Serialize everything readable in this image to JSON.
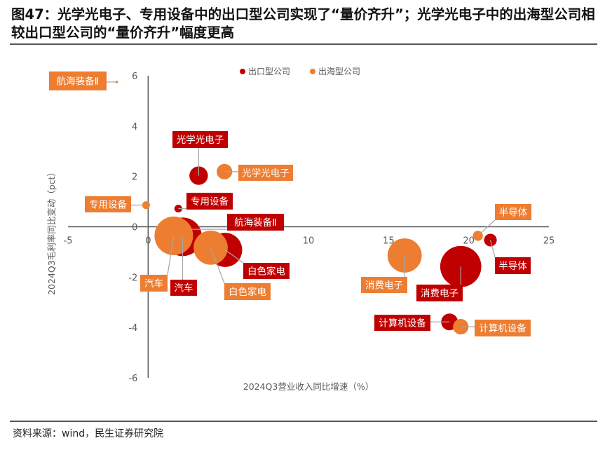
{
  "title": "图47：光学光电子、专用设备中的出口型公司实现了“量价齐升”；光学光电子中的出海型公司相较出口型公司的“量价齐升”幅度更高",
  "footer": "资料来源：wind，民生证券研究院",
  "chart_data": {
    "type": "bubble",
    "xlabel": "2024Q3营业收入同比增速（%）",
    "ylabel": "2024Q3毛利率同比变动（pct）",
    "xlim": [
      -5,
      25
    ],
    "ylim": [
      -6,
      6
    ],
    "xticks": [
      "-5",
      "0",
      "5",
      "10",
      "15",
      "20",
      "25"
    ],
    "yticks": [
      "6",
      "4",
      "2",
      "0",
      "-2",
      "-4",
      "-6"
    ],
    "grid": false,
    "legend_position": "top",
    "colors": {
      "出口型公司": "#C00000",
      "出海型公司": "#ED7D31"
    },
    "series": [
      {
        "name": "出口型公司",
        "color": "#C00000",
        "points": [
          {
            "label": "光学光电子",
            "x": 3.15,
            "y": 2.03,
            "size": 17
          },
          {
            "label": "专用设备",
            "x": 1.88,
            "y": 0.72,
            "size": 3
          },
          {
            "label": "航海装备Ⅱ",
            "x": 2.7,
            "y": -0.1,
            "size": 1
          },
          {
            "label": "汽车",
            "x": 2.15,
            "y": -0.4,
            "size": 74
          },
          {
            "label": "白色家电",
            "x": 4.8,
            "y": -0.92,
            "size": 58
          },
          {
            "label": "消费电子",
            "x": 19.5,
            "y": -1.58,
            "size": 84
          },
          {
            "label": "半导体",
            "x": 21.35,
            "y": -0.53,
            "size": 8
          },
          {
            "label": "计算机设备",
            "x": 18.8,
            "y": -3.78,
            "size": 14
          }
        ]
      },
      {
        "name": "出海型公司",
        "color": "#ED7D31",
        "points": [
          {
            "label": "航海装备Ⅱ",
            "x": -1.96,
            "y": 5.75,
            "size": 0.3
          },
          {
            "label": "光学光电子",
            "x": 4.76,
            "y": 2.19,
            "size": 12
          },
          {
            "label": "专用设备",
            "x": -0.13,
            "y": 0.86,
            "size": 3
          },
          {
            "label": "汽车",
            "x": 1.6,
            "y": -0.36,
            "size": 74
          },
          {
            "label": "白色家电",
            "x": 3.9,
            "y": -0.83,
            "size": 58
          },
          {
            "label": "消费电子",
            "x": 16.0,
            "y": -1.14,
            "size": 58
          },
          {
            "label": "半导体",
            "x": 20.57,
            "y": -0.36,
            "size": 5
          },
          {
            "label": "计算机设备",
            "x": 19.5,
            "y": -3.97,
            "size": 12
          }
        ]
      }
    ]
  }
}
